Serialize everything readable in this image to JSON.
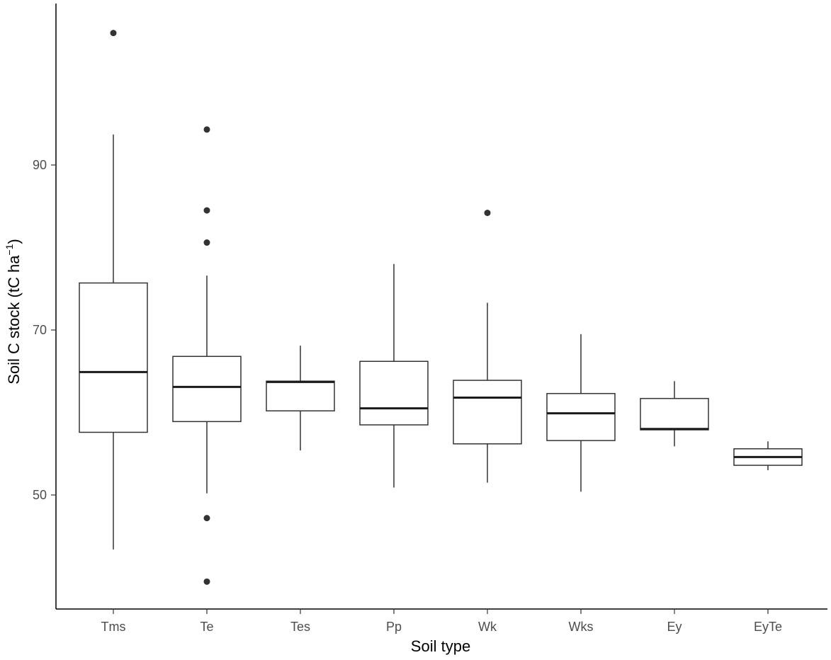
{
  "chart_data": {
    "type": "boxplot",
    "title": "",
    "xlabel": "Soil type",
    "ylabel": {
      "prefix": "Soil C stock (tC ha",
      "superscript": "−1",
      "suffix": ")"
    },
    "ylim": [
      37.3,
      98.4
    ],
    "yticks": [
      50,
      70,
      90
    ],
    "grid": false,
    "categories": [
      "Tms",
      "Te",
      "Tes",
      "Pp",
      "Wk",
      "Wks",
      "Ey",
      "EyTe"
    ],
    "boxes": [
      {
        "name": "Tms",
        "whisker_low": 43.4,
        "q1": 57.6,
        "median": 64.9,
        "q3": 75.7,
        "whisker_high": 93.7,
        "outliers": [
          106.0
        ]
      },
      {
        "name": "Te",
        "whisker_low": 50.2,
        "q1": 58.9,
        "median": 63.1,
        "q3": 66.8,
        "whisker_high": 76.6,
        "outliers": [
          94.3,
          84.5,
          80.6,
          47.2,
          39.5
        ]
      },
      {
        "name": "Tes",
        "whisker_low": 55.4,
        "q1": 60.2,
        "median": 63.7,
        "q3": 63.8,
        "whisker_high": 68.1,
        "outliers": []
      },
      {
        "name": "Pp",
        "whisker_low": 50.9,
        "q1": 58.5,
        "median": 60.5,
        "q3": 66.2,
        "whisker_high": 78.0,
        "outliers": []
      },
      {
        "name": "Wk",
        "whisker_low": 51.5,
        "q1": 56.2,
        "median": 61.8,
        "q3": 63.9,
        "whisker_high": 73.3,
        "outliers": [
          84.2
        ]
      },
      {
        "name": "Wks",
        "whisker_low": 50.4,
        "q1": 56.6,
        "median": 59.9,
        "q3": 62.3,
        "whisker_high": 69.5,
        "outliers": []
      },
      {
        "name": "Ey",
        "whisker_low": 55.9,
        "q1": 57.9,
        "median": 58.0,
        "q3": 61.7,
        "whisker_high": 63.8,
        "outliers": []
      },
      {
        "name": "EyTe",
        "whisker_low": 53.0,
        "q1": 53.6,
        "median": 54.6,
        "q3": 55.6,
        "whisker_high": 56.5,
        "outliers": []
      }
    ]
  }
}
